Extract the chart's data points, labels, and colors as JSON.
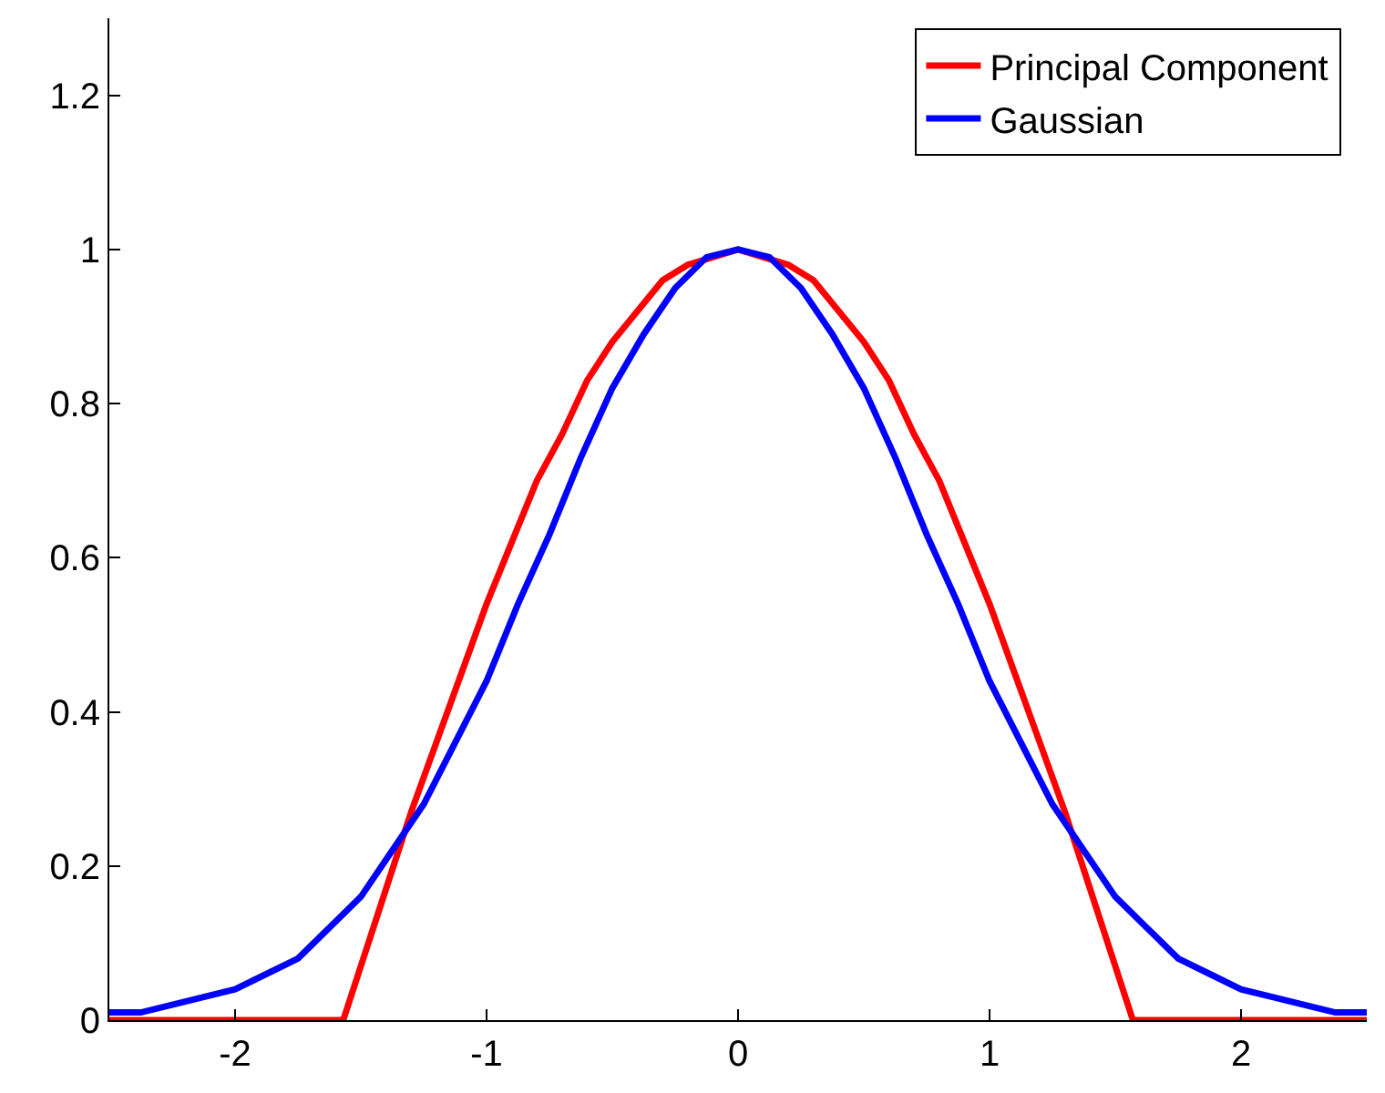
{
  "chart_data": {
    "type": "line",
    "series": [
      {
        "name": "Principal Component",
        "color": "#ff0000",
        "x": [
          -2.5,
          -1.57,
          -1.5,
          -1.4,
          -1.3,
          -1.2,
          -1.1,
          -1.0,
          -0.9,
          -0.8,
          -0.7,
          -0.6,
          -0.5,
          -0.4,
          -0.3,
          -0.2,
          -0.1,
          0,
          0.1,
          0.2,
          0.3,
          0.4,
          0.5,
          0.6,
          0.7,
          0.8,
          0.9,
          1.0,
          1.1,
          1.2,
          1.3,
          1.4,
          1.5,
          1.57,
          2.5
        ],
        "values": [
          0,
          0,
          0.07,
          0.17,
          0.27,
          0.36,
          0.45,
          0.54,
          0.62,
          0.7,
          0.76,
          0.83,
          0.88,
          0.92,
          0.96,
          0.98,
          0.99,
          1,
          0.99,
          0.98,
          0.96,
          0.92,
          0.88,
          0.83,
          0.76,
          0.7,
          0.62,
          0.54,
          0.45,
          0.36,
          0.27,
          0.17,
          0.07,
          0,
          0
        ]
      },
      {
        "name": "Gaussian",
        "color": "#0000ff",
        "x": [
          -2.5,
          -2.375,
          -2.25,
          -2.125,
          -2.0,
          -1.875,
          -1.75,
          -1.625,
          -1.5,
          -1.375,
          -1.25,
          -1.125,
          -1.0,
          -0.875,
          -0.75,
          -0.625,
          -0.5,
          -0.375,
          -0.25,
          -0.125,
          0,
          0.125,
          0.25,
          0.375,
          0.5,
          0.625,
          0.75,
          0.875,
          1.0,
          1.125,
          1.25,
          1.375,
          1.5,
          1.625,
          1.75,
          1.875,
          2.0,
          2.125,
          2.25,
          2.375,
          2.5
        ],
        "values": [
          0.01,
          0.01,
          0.02,
          0.03,
          0.04,
          0.06,
          0.08,
          0.12,
          0.16,
          0.22,
          0.28,
          0.36,
          0.44,
          0.54,
          0.63,
          0.73,
          0.82,
          0.89,
          0.95,
          0.99,
          1,
          0.99,
          0.95,
          0.89,
          0.82,
          0.73,
          0.63,
          0.54,
          0.44,
          0.36,
          0.28,
          0.22,
          0.16,
          0.12,
          0.08,
          0.06,
          0.04,
          0.03,
          0.02,
          0.01,
          0.01
        ]
      }
    ],
    "xlim": [
      -2.5,
      2.5
    ],
    "xticks": [
      -2,
      -1,
      0,
      1,
      2
    ],
    "ylim": [
      0,
      1.3
    ],
    "yticks": [
      0,
      0.2,
      0.4,
      0.6,
      0.8,
      1,
      1.2
    ],
    "legend": "top right",
    "line_style": "solid",
    "marker": "none"
  }
}
